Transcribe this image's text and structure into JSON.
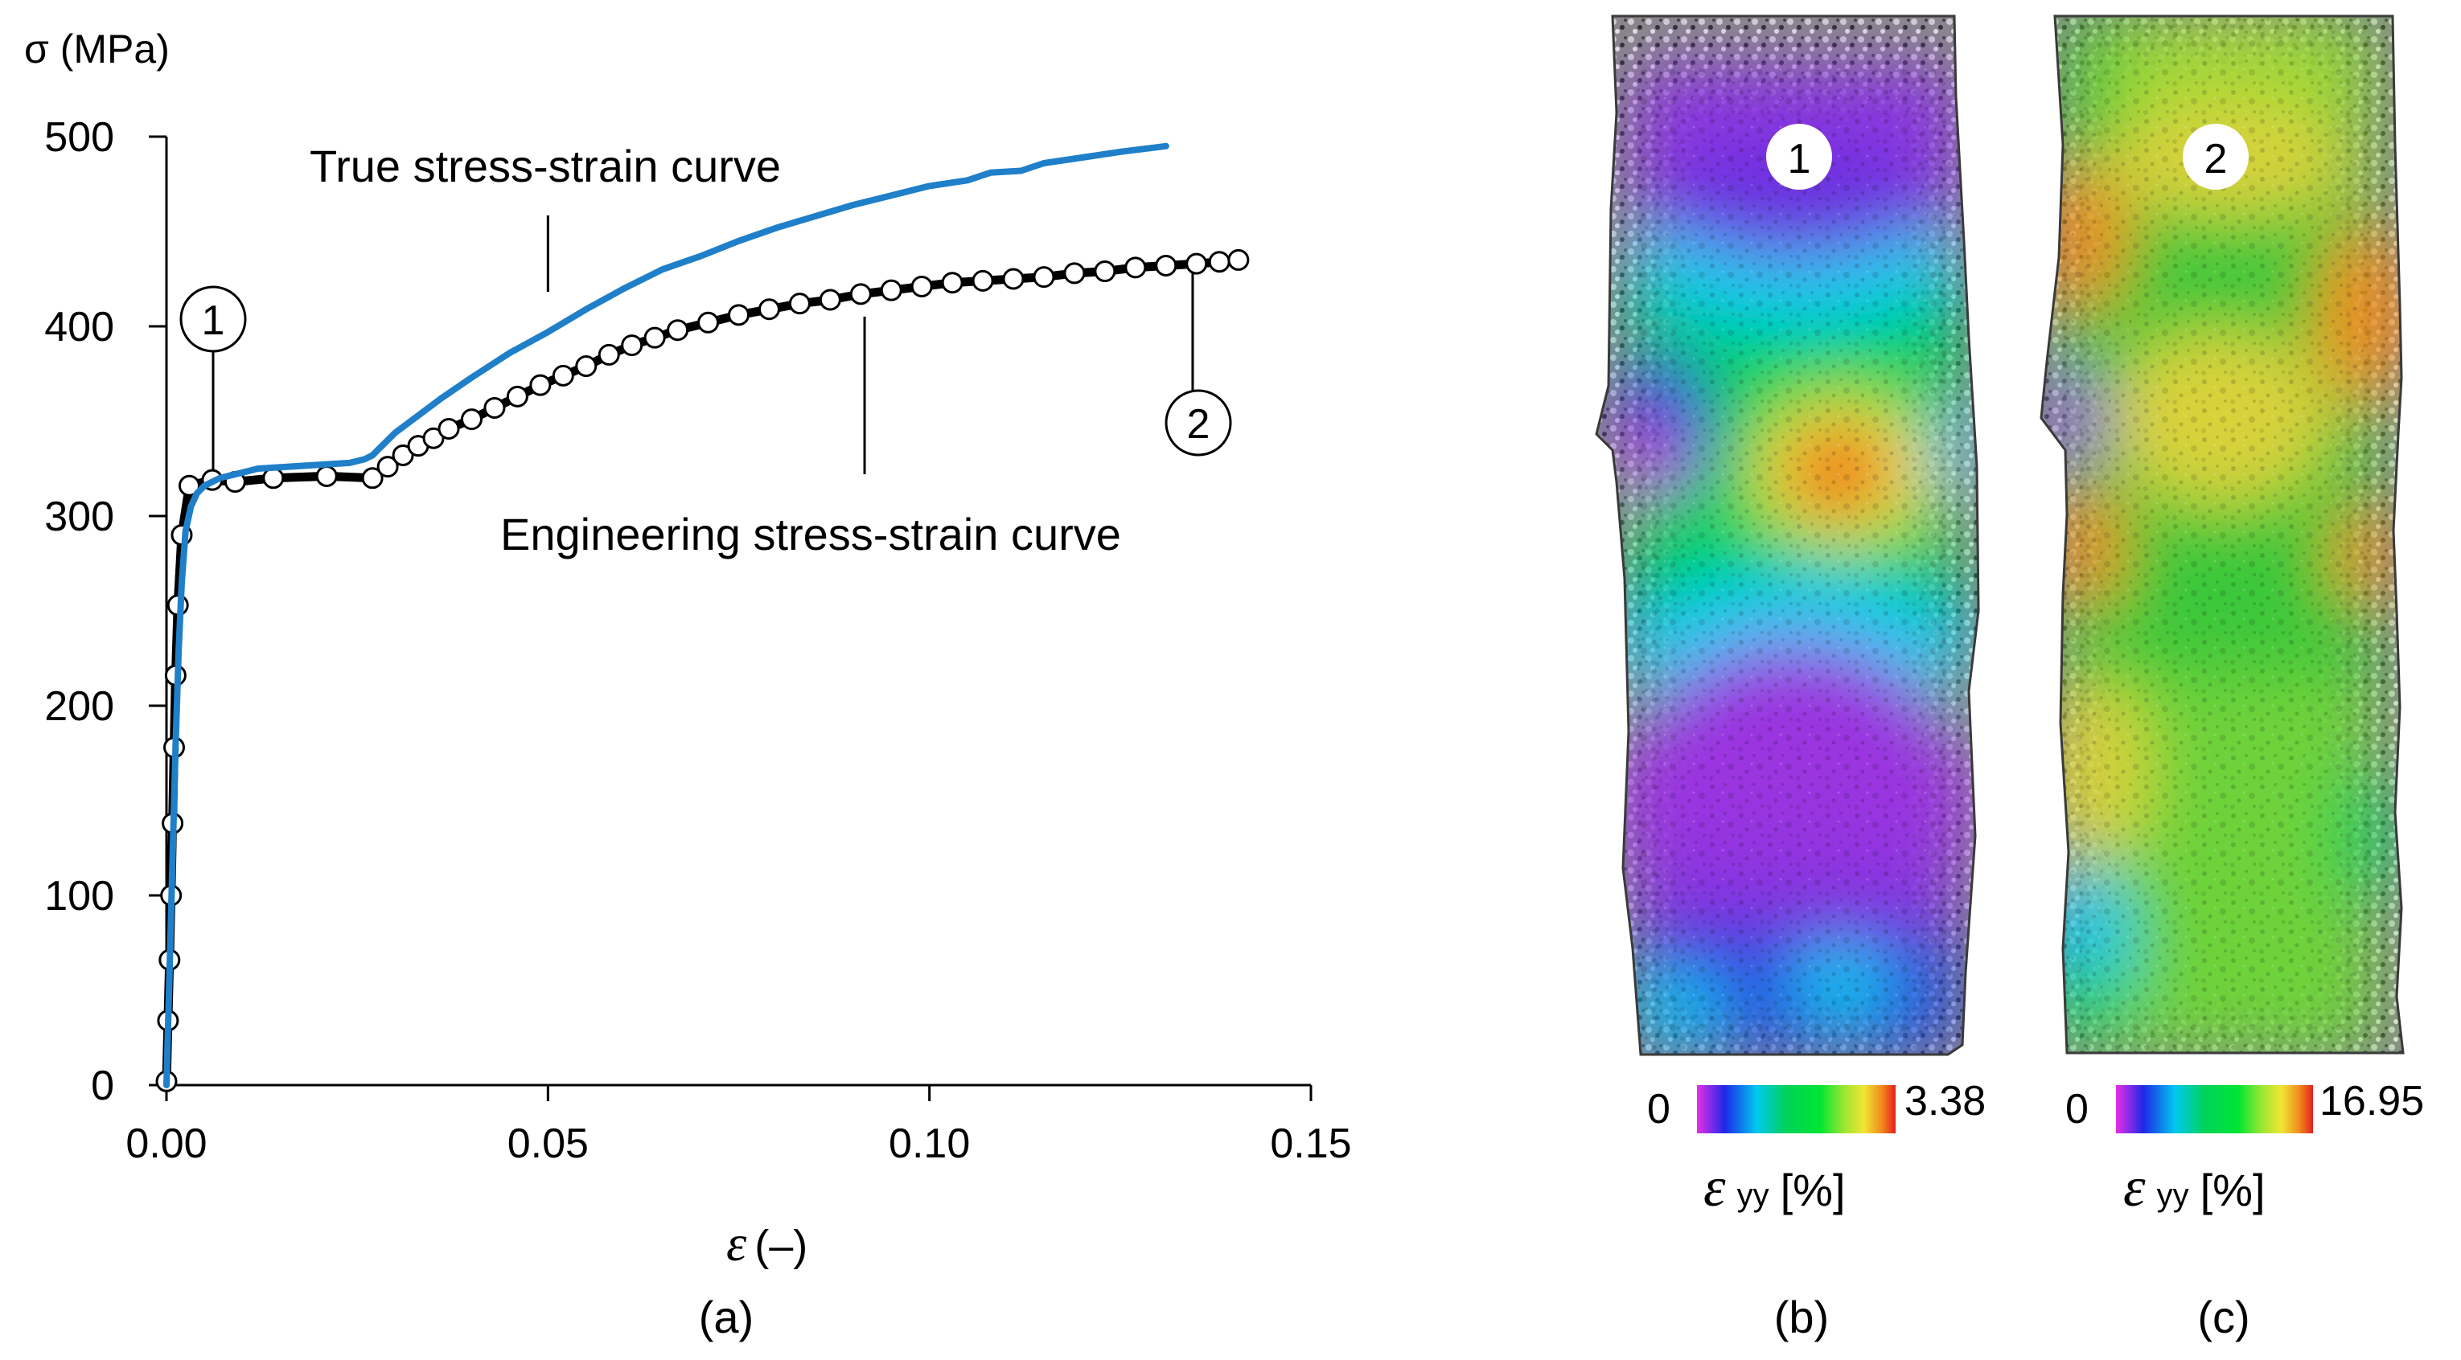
{
  "chart_data": [
    {
      "type": "line",
      "panel": "a",
      "panel_label": "(a)",
      "ylabel": "σ (MPa)",
      "xlabel_symbol": "ε",
      "xlabel_unit": "(–)",
      "xlim": [
        0,
        0.15
      ],
      "ylim": [
        0,
        500
      ],
      "xticks": [
        "0.00",
        "0.05",
        "0.10",
        "0.15"
      ],
      "yticks": [
        "0",
        "100",
        "200",
        "300",
        "400",
        "500"
      ],
      "grid": false,
      "series": [
        {
          "name": "True stress-strain curve",
          "color": "#1f7fc9",
          "marker": "none",
          "x": [
            0,
            0.0004,
            0.0008,
            0.0012,
            0.0016,
            0.002,
            0.0025,
            0.0032,
            0.004,
            0.005,
            0.006,
            0.007,
            0.009,
            0.012,
            0.016,
            0.02,
            0.024,
            0.026,
            0.027,
            0.028,
            0.03,
            0.033,
            0.036,
            0.04,
            0.045,
            0.05,
            0.055,
            0.06,
            0.065,
            0.07,
            0.075,
            0.08,
            0.085,
            0.09,
            0.095,
            0.1,
            0.105,
            0.108,
            0.112,
            0.115,
            0.12,
            0.125,
            0.131
          ],
          "y": [
            0,
            60,
            120,
            180,
            230,
            265,
            292,
            305,
            312,
            316,
            318,
            320,
            322,
            325,
            326,
            327,
            328,
            330,
            332,
            336,
            344,
            353,
            362,
            373,
            386,
            397,
            409,
            420,
            430,
            437,
            445,
            452,
            458,
            464,
            469,
            474,
            477,
            481,
            482,
            486,
            489,
            492,
            495
          ]
        },
        {
          "name": "Engineering stress-strain curve",
          "color": "#000000",
          "marker": "open-circle",
          "x": [
            0,
            0.0002,
            0.0004,
            0.0006,
            0.0008,
            0.001,
            0.0012,
            0.0015,
            0.002,
            0.003,
            0.006,
            0.009,
            0.014,
            0.021,
            0.027,
            0.029,
            0.031,
            0.033,
            0.035,
            0.037,
            0.04,
            0.043,
            0.046,
            0.049,
            0.052,
            0.055,
            0.058,
            0.061,
            0.064,
            0.067,
            0.071,
            0.075,
            0.079,
            0.083,
            0.087,
            0.091,
            0.095,
            0.099,
            0.103,
            0.107,
            0.111,
            0.115,
            0.119,
            0.123,
            0.127,
            0.131,
            0.135,
            0.138,
            0.1405
          ],
          "y": [
            2,
            34,
            66,
            100,
            138,
            178,
            216,
            253,
            290,
            316,
            319,
            318,
            320,
            321,
            320,
            326,
            332,
            337,
            341,
            346,
            351,
            357,
            363,
            369,
            374,
            379,
            385,
            390,
            394,
            398,
            402,
            406,
            409,
            412,
            414,
            417,
            419,
            421,
            423,
            424,
            425,
            426,
            428,
            429,
            431,
            432,
            433,
            434,
            435
          ]
        }
      ],
      "annotations": [
        {
          "text": "True stress-strain curve",
          "points_to": [
            0.05,
            397
          ]
        },
        {
          "text": "Engineering stress-strain curve",
          "points_to": [
            0.0915,
            417
          ]
        },
        {
          "text": "1",
          "points_to": [
            0.0062,
            318
          ]
        },
        {
          "text": "2",
          "points_to": [
            0.1345,
            433
          ]
        }
      ]
    },
    {
      "type": "heatmap",
      "panel": "b",
      "panel_label": "(b)",
      "marker_label": "1",
      "colorbar_min": "0",
      "colorbar_max": "3.38",
      "colorbar_label": "ε",
      "colorbar_sub": "yy",
      "colorbar_unit": "[%]",
      "colormap": [
        "#e62ee6",
        "#1e28e6",
        "#00c8f0",
        "#00d25a",
        "#00e632",
        "#9be632",
        "#f0e632",
        "#f08c1e",
        "#e61e1e"
      ]
    },
    {
      "type": "heatmap",
      "panel": "c",
      "panel_label": "(c)",
      "marker_label": "2",
      "colorbar_min": "0",
      "colorbar_max": "16.95",
      "colorbar_label": "ε",
      "colorbar_sub": "yy",
      "colorbar_unit": "[%]",
      "colormap": [
        "#e62ee6",
        "#1e28e6",
        "#00c8f0",
        "#00d25a",
        "#00e632",
        "#9be632",
        "#f0e632",
        "#f08c1e",
        "#e61e1e"
      ]
    }
  ]
}
